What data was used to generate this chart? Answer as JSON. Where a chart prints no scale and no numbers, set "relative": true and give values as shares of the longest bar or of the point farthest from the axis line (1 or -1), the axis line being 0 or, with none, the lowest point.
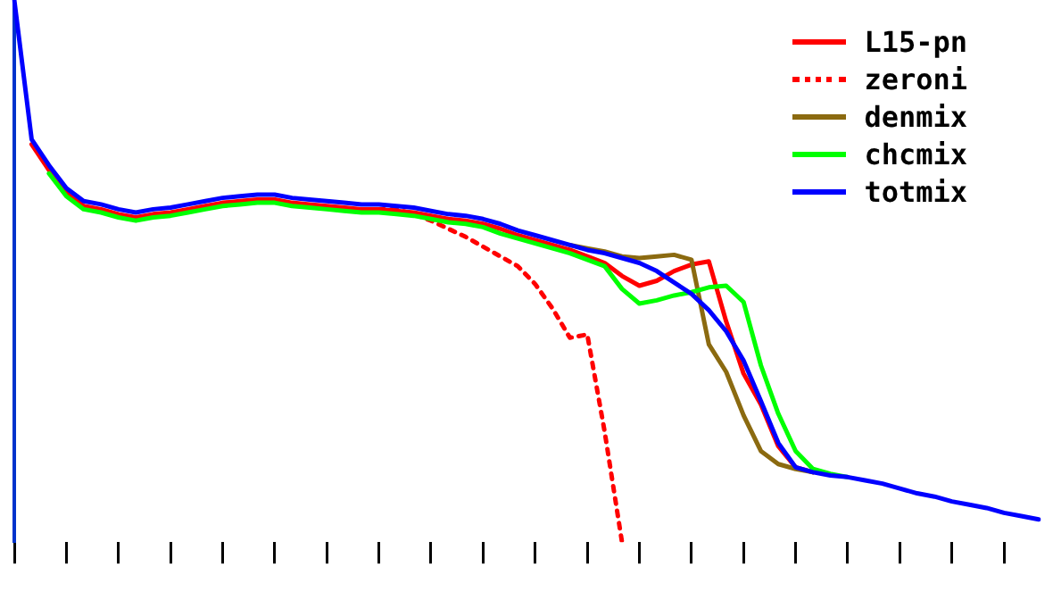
{
  "chart_data": {
    "type": "line",
    "relative": true,
    "legend": "top right",
    "marker": "none",
    "categories": [
      null,
      null,
      null,
      null,
      null,
      null,
      null,
      null,
      null,
      null,
      null,
      null,
      null,
      null,
      null,
      null,
      null,
      null,
      null,
      null,
      null,
      null,
      null,
      null,
      null,
      null,
      null,
      null,
      null,
      null,
      null,
      null,
      null,
      null,
      null,
      null,
      null,
      null,
      null,
      null,
      null,
      null,
      null,
      null,
      null,
      null,
      null,
      null,
      null,
      null,
      null,
      null,
      null,
      null,
      null,
      null,
      null,
      null,
      null,
      null
    ],
    "series": [
      {
        "name": "L15-pn",
        "color": "#ff0000",
        "line_style": "solid",
        "values": [
          null,
          0.734,
          0.686,
          0.644,
          0.62,
          0.614,
          0.605,
          0.599,
          0.605,
          0.608,
          0.614,
          0.62,
          0.626,
          0.629,
          0.632,
          0.632,
          0.626,
          0.623,
          0.62,
          0.617,
          0.614,
          0.614,
          0.611,
          0.608,
          0.602,
          0.596,
          0.593,
          0.587,
          0.578,
          0.566,
          0.557,
          0.548,
          0.539,
          0.527,
          0.515,
          0.491,
          0.473,
          0.482,
          0.5,
          0.512,
          0.518,
          0.407,
          0.311,
          0.254,
          0.177,
          0.138,
          0.129,
          null,
          null,
          null,
          null,
          null,
          null,
          null,
          null,
          null,
          null,
          null,
          null,
          null
        ]
      },
      {
        "name": "zeroni",
        "color": "#ff0000",
        "line_style": "dotted",
        "values": [
          null,
          null,
          null,
          null,
          null,
          null,
          null,
          null,
          null,
          null,
          null,
          null,
          null,
          null,
          null,
          null,
          null,
          null,
          null,
          null,
          null,
          0.614,
          0.614,
          0.605,
          0.593,
          0.578,
          0.563,
          0.545,
          0.527,
          0.509,
          0.476,
          0.431,
          0.377,
          0.383,
          0.204,
          0,
          null,
          null,
          null,
          null,
          null,
          null,
          null,
          null,
          null,
          null,
          null,
          null,
          null,
          null,
          null,
          null,
          null,
          null,
          null,
          null,
          null,
          null,
          null,
          null
        ]
      },
      {
        "name": "denmix",
        "color": "#8b6a10",
        "line_style": "solid",
        "values": [
          null,
          null,
          null,
          null,
          null,
          null,
          null,
          null,
          null,
          null,
          null,
          null,
          null,
          null,
          null,
          null,
          null,
          null,
          null,
          null,
          null,
          null,
          null,
          null,
          null,
          null,
          null,
          null,
          null,
          null,
          null,
          null,
          0.548,
          0.542,
          0.536,
          0.527,
          0.524,
          0.527,
          0.53,
          0.521,
          0.365,
          0.314,
          0.234,
          0.168,
          0.144,
          0.135,
          0.129,
          null,
          null,
          null,
          null,
          null,
          null,
          null,
          null,
          null,
          null,
          null,
          null,
          null
        ]
      },
      {
        "name": "chcmix",
        "color": "#00ff00",
        "line_style": "solid",
        "values": [
          null,
          null,
          0.68,
          0.638,
          0.614,
          0.608,
          0.599,
          0.593,
          0.599,
          0.602,
          0.608,
          0.614,
          0.62,
          0.623,
          0.626,
          0.626,
          0.62,
          0.617,
          0.614,
          0.611,
          0.608,
          0.608,
          0.605,
          0.602,
          0.596,
          0.59,
          0.587,
          0.581,
          0.569,
          0.56,
          0.551,
          0.542,
          0.533,
          0.521,
          0.509,
          0.467,
          0.44,
          0.446,
          0.455,
          0.461,
          0.47,
          0.473,
          0.443,
          0.326,
          0.237,
          0.168,
          0.135,
          0.126,
          0.12,
          null,
          null,
          null,
          null,
          null,
          null,
          null,
          null,
          null,
          null,
          null
        ]
      },
      {
        "name": "totmix",
        "color": "#0000ff",
        "line_style": "solid",
        "values": [
          1,
          0.743,
          0.695,
          0.653,
          0.629,
          0.623,
          0.614,
          0.608,
          0.614,
          0.617,
          0.623,
          0.629,
          0.635,
          0.638,
          0.641,
          0.641,
          0.635,
          0.632,
          0.629,
          0.626,
          0.623,
          0.623,
          0.62,
          0.617,
          0.611,
          0.605,
          0.602,
          0.596,
          0.587,
          0.575,
          0.566,
          0.557,
          0.548,
          0.539,
          0.533,
          0.524,
          0.515,
          0.5,
          0.479,
          0.458,
          0.428,
          0.389,
          0.335,
          0.26,
          0.183,
          0.138,
          0.129,
          0.123,
          0.12,
          0.114,
          0.108,
          0.099,
          0.09,
          0.084,
          0.075,
          0.069,
          0.063,
          0.054,
          0.048,
          0.042
        ]
      }
    ]
  }
}
